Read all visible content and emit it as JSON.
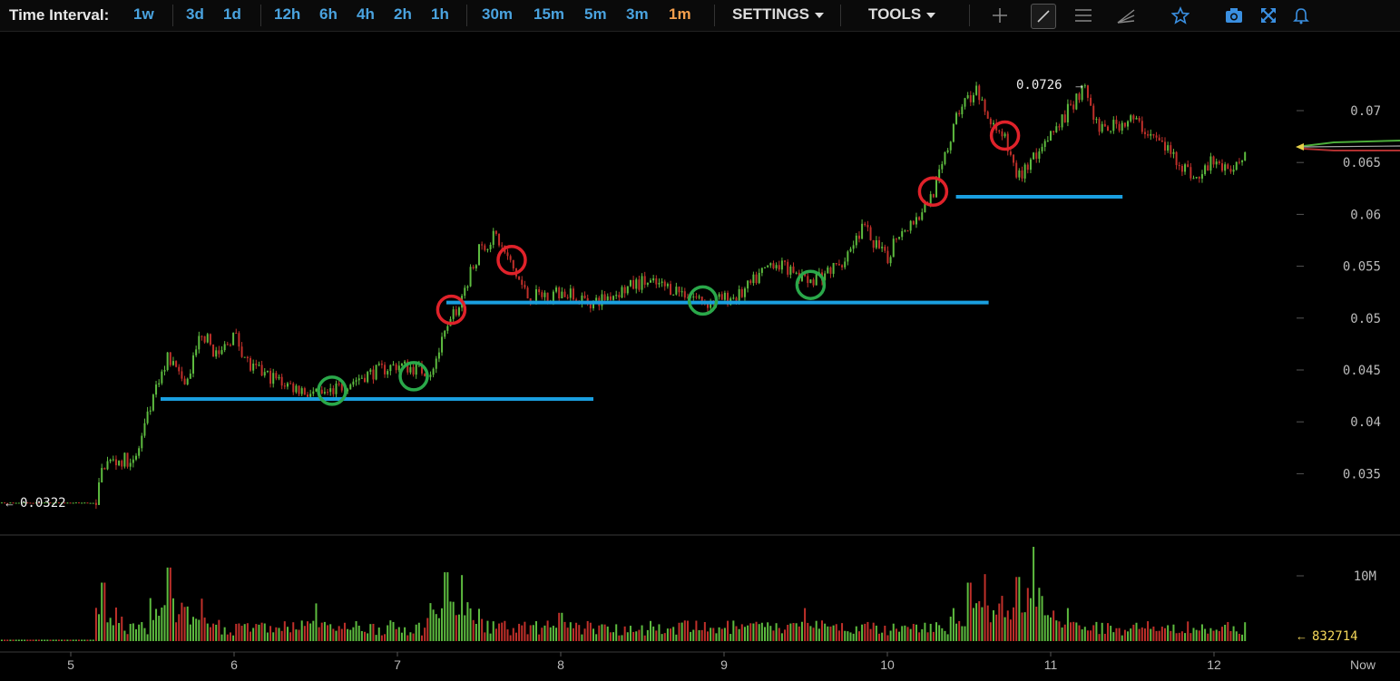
{
  "toolbar": {
    "label": "Time Interval:",
    "intervals": [
      "1w",
      "3d",
      "1d",
      "12h",
      "6h",
      "4h",
      "2h",
      "1h",
      "30m",
      "15m",
      "5m",
      "3m",
      "1m"
    ],
    "active_interval": "1m",
    "settings_label": "SETTINGS",
    "tools_label": "TOOLS",
    "icons": [
      "crosshair-icon",
      "trendline-icon",
      "horizontal-lines-icon",
      "fan-icon",
      "star-icon",
      "camera-icon",
      "fullscreen-icon",
      "bell-icon"
    ]
  },
  "colors": {
    "up": "#5dbb3f",
    "down": "#c0302a",
    "support_line": "#1a9fe0",
    "circle_green": "#2aa84a",
    "circle_red": "#e0222a",
    "interval_link": "#4aa3df",
    "interval_active": "#f6a04d",
    "current_volume": "#f5d85a"
  },
  "chart_data": {
    "type": "candlestick",
    "x_ticks": [
      "5",
      "6",
      "7",
      "8",
      "9",
      "10",
      "11",
      "12",
      "Now"
    ],
    "y_ticks": [
      "0.07",
      "0.065",
      "0.06",
      "0.055",
      "0.05",
      "0.045",
      "0.04",
      "0.035"
    ],
    "volume_ticks": [
      "10M"
    ],
    "ylim": [
      0.031,
      0.073
    ],
    "low_label": "0.0322",
    "high_label": "0.0726",
    "current_volume_label": "832714",
    "price_path": [
      [
        4.0,
        0.0322
      ],
      [
        5.15,
        0.0322
      ],
      [
        5.2,
        0.036
      ],
      [
        5.4,
        0.0365
      ],
      [
        5.5,
        0.042
      ],
      [
        5.6,
        0.0465
      ],
      [
        5.7,
        0.0432
      ],
      [
        5.8,
        0.0488
      ],
      [
        5.9,
        0.0462
      ],
      [
        6.0,
        0.0485
      ],
      [
        6.1,
        0.0452
      ],
      [
        6.3,
        0.0438
      ],
      [
        6.5,
        0.0425
      ],
      [
        6.6,
        0.043
      ],
      [
        6.8,
        0.0445
      ],
      [
        7.0,
        0.0455
      ],
      [
        7.2,
        0.0448
      ],
      [
        7.35,
        0.0505
      ],
      [
        7.5,
        0.0565
      ],
      [
        7.6,
        0.058
      ],
      [
        7.7,
        0.055
      ],
      [
        7.8,
        0.052
      ],
      [
        8.0,
        0.0525
      ],
      [
        8.2,
        0.0515
      ],
      [
        8.5,
        0.0535
      ],
      [
        8.7,
        0.0528
      ],
      [
        8.9,
        0.0515
      ],
      [
        9.1,
        0.0522
      ],
      [
        9.3,
        0.0555
      ],
      [
        9.5,
        0.0535
      ],
      [
        9.7,
        0.055
      ],
      [
        9.85,
        0.0588
      ],
      [
        10.0,
        0.0555
      ],
      [
        10.05,
        0.058
      ],
      [
        10.2,
        0.06
      ],
      [
        10.3,
        0.0628
      ],
      [
        10.45,
        0.0705
      ],
      [
        10.55,
        0.0718
      ],
      [
        10.62,
        0.069
      ],
      [
        10.7,
        0.068
      ],
      [
        10.8,
        0.0635
      ],
      [
        11.0,
        0.0675
      ],
      [
        11.2,
        0.0722
      ],
      [
        11.3,
        0.068
      ],
      [
        11.5,
        0.0692
      ],
      [
        11.7,
        0.0665
      ],
      [
        11.9,
        0.0632
      ],
      [
        12.0,
        0.0655
      ],
      [
        12.1,
        0.0635
      ],
      [
        12.2,
        0.0665
      ]
    ],
    "volume_spikes": [
      [
        5.2,
        0.62
      ],
      [
        5.6,
        0.78
      ],
      [
        5.8,
        0.45
      ],
      [
        6.5,
        0.4
      ],
      [
        7.3,
        0.73
      ],
      [
        7.4,
        0.7
      ],
      [
        8.0,
        0.3
      ],
      [
        9.5,
        0.35
      ],
      [
        10.5,
        0.62
      ],
      [
        10.6,
        0.71
      ],
      [
        10.7,
        0.48
      ],
      [
        10.8,
        0.68
      ],
      [
        10.9,
        1.0
      ],
      [
        11.1,
        0.35
      ],
      [
        12.2,
        0.2
      ]
    ],
    "support_lines": [
      {
        "x1": 5.55,
        "x2": 8.2,
        "y": 0.0422
      },
      {
        "x1": 7.3,
        "x2": 10.62,
        "y": 0.0515
      },
      {
        "x1": 10.42,
        "x2": 11.44,
        "y": 0.0617
      }
    ],
    "circles": [
      {
        "x": 6.6,
        "y": 0.043,
        "color": "green"
      },
      {
        "x": 7.1,
        "y": 0.0444,
        "color": "green"
      },
      {
        "x": 7.33,
        "y": 0.0508,
        "color": "red"
      },
      {
        "x": 7.7,
        "y": 0.0556,
        "color": "red"
      },
      {
        "x": 8.87,
        "y": 0.0517,
        "color": "green"
      },
      {
        "x": 9.53,
        "y": 0.0532,
        "color": "green"
      },
      {
        "x": 10.28,
        "y": 0.0622,
        "color": "red"
      },
      {
        "x": 10.72,
        "y": 0.0676,
        "color": "red"
      }
    ]
  }
}
